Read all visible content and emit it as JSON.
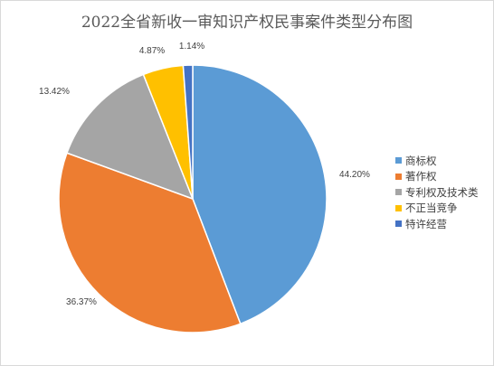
{
  "chart_data": {
    "type": "pie",
    "title": "2022全省新收一审知识产权民事案件类型分布图",
    "categories": [
      "商标权",
      "著作权",
      "专利权及技术类",
      "不正当竞争",
      "特许经营"
    ],
    "values": [
      44.2,
      36.37,
      13.42,
      4.87,
      1.14
    ],
    "data_labels": [
      "44.20%",
      "36.37%",
      "13.42%",
      "4.87%",
      "1.14%"
    ],
    "colors": [
      "#5b9bd5",
      "#ed7d31",
      "#a5a5a5",
      "#ffc000",
      "#4472c4"
    ],
    "legend_position": "right"
  }
}
